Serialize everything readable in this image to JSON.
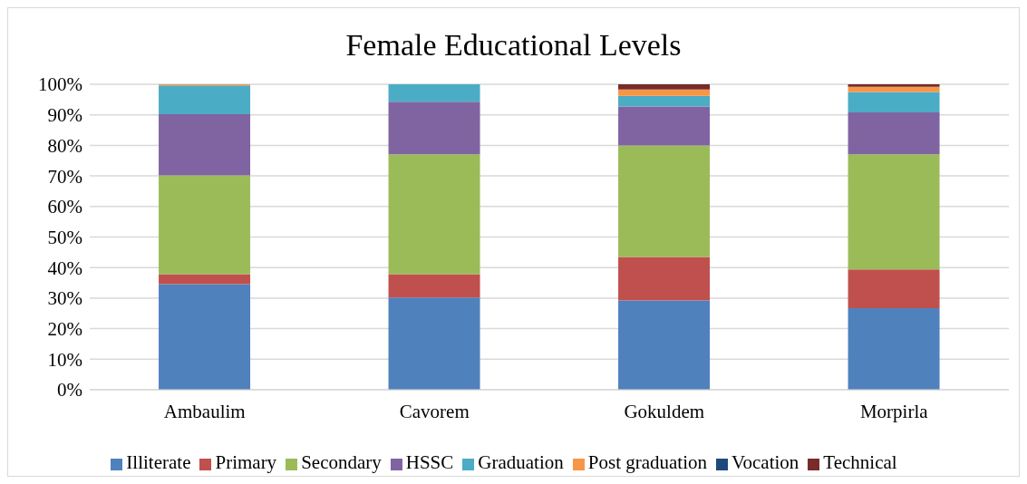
{
  "chart_data": {
    "type": "bar",
    "title": "Female Educational Levels",
    "stacked": true,
    "categories": [
      "Ambaulim",
      "Cavorem",
      "Gokuldem",
      "Morpirla"
    ],
    "series": [
      {
        "name": "Illiterate",
        "color": "#4f81bd",
        "values": [
          34.6,
          30.2,
          29.2,
          26.7
        ]
      },
      {
        "name": "Primary",
        "color": "#c0504d",
        "values": [
          3.2,
          7.6,
          14.3,
          12.7
        ]
      },
      {
        "name": "Secondary",
        "color": "#9bbb59",
        "values": [
          32.4,
          39.3,
          36.5,
          37.7
        ]
      },
      {
        "name": "HSSC",
        "color": "#8064a2",
        "values": [
          20,
          17.2,
          12.7,
          13.7
        ]
      },
      {
        "name": "Graduation",
        "color": "#4bacc6",
        "values": [
          9.4,
          5.7,
          3.5,
          6.7
        ]
      },
      {
        "name": "Post graduation",
        "color": "#f79646",
        "values": [
          0.4,
          0,
          2.1,
          1.7
        ]
      },
      {
        "name": "Vocation",
        "color": "#1f497d",
        "values": [
          0,
          0,
          0,
          0
        ]
      },
      {
        "name": "Technical",
        "color": "#772c2a",
        "values": [
          0,
          0,
          1.7,
          0.8
        ]
      }
    ],
    "ylim": [
      0,
      100
    ],
    "yticks": [
      {
        "value": 0,
        "label": "0%"
      },
      {
        "value": 10,
        "label": "10%"
      },
      {
        "value": 20,
        "label": "20%"
      },
      {
        "value": 30,
        "label": "30%"
      },
      {
        "value": 40,
        "label": "40%"
      },
      {
        "value": 50,
        "label": "50%"
      },
      {
        "value": 60,
        "label": "60%"
      },
      {
        "value": 70,
        "label": "70%"
      },
      {
        "value": 80,
        "label": "80%"
      },
      {
        "value": 90,
        "label": "90%"
      },
      {
        "value": 100,
        "label": "100%"
      }
    ],
    "grid": "y",
    "legend": "bottom"
  }
}
